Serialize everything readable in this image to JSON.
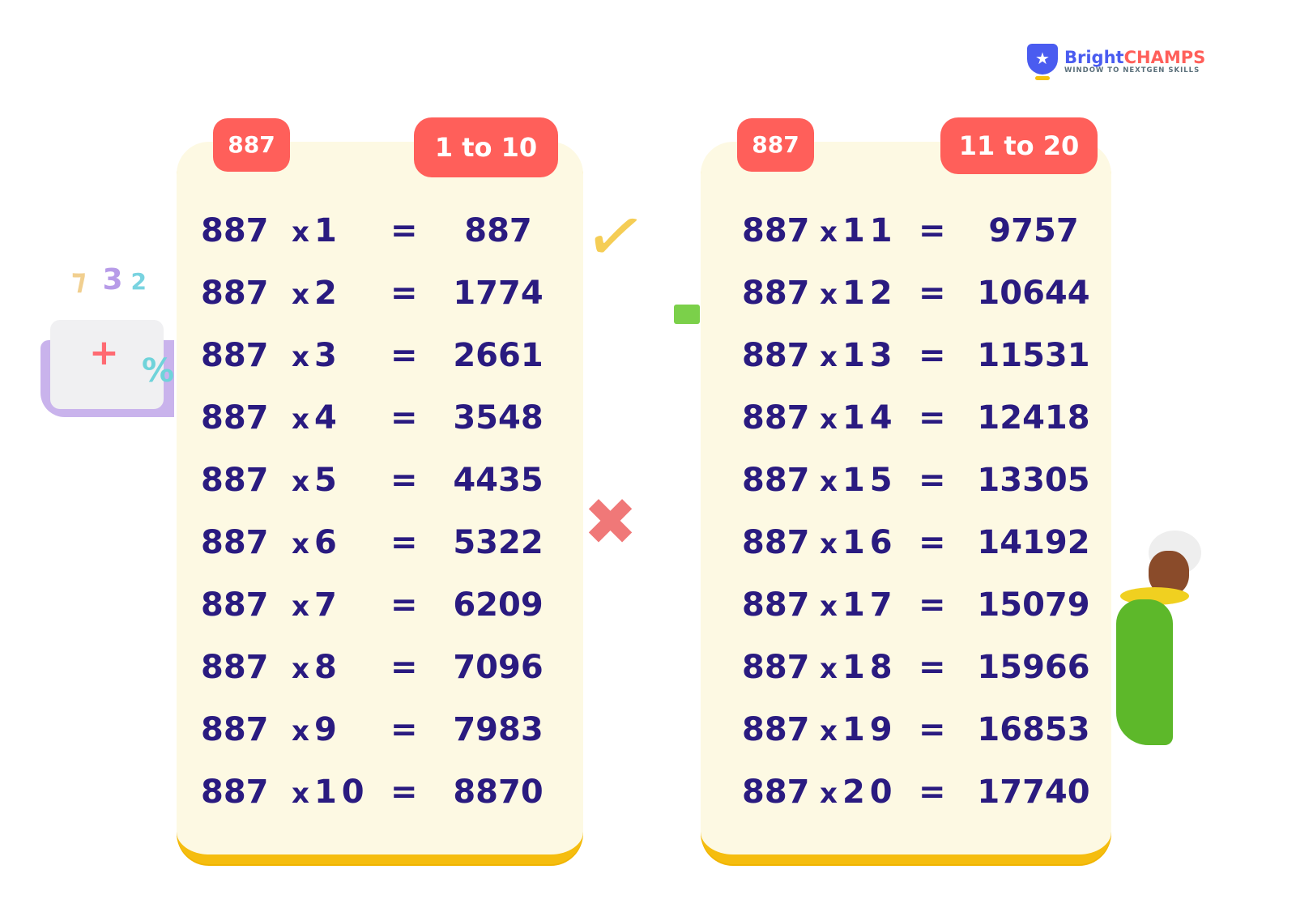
{
  "logo": {
    "brand_part1": "Bright",
    "brand_part2": "CHAMPS",
    "tagline": "WINDOW TO NEXTGEN SKILLS"
  },
  "colors": {
    "card": "#fdf9e3",
    "badge": "#ff5f5a",
    "text": "#2a1b80",
    "accent": "#f5bd0f"
  },
  "tables": [
    {
      "badge": "887",
      "range": "1 to 10",
      "equals": "=",
      "times": "x",
      "rows": [
        {
          "a": "887",
          "b": "1",
          "result": "887"
        },
        {
          "a": "887",
          "b": "2",
          "result": "1774"
        },
        {
          "a": "887",
          "b": "3",
          "result": "2661"
        },
        {
          "a": "887",
          "b": "4",
          "result": "3548"
        },
        {
          "a": "887",
          "b": "5",
          "result": "4435"
        },
        {
          "a": "887",
          "b": "6",
          "result": "5322"
        },
        {
          "a": "887",
          "b": "7",
          "result": "6209"
        },
        {
          "a": "887",
          "b": "8",
          "result": "7096"
        },
        {
          "a": "887",
          "b": "9",
          "result": "7983"
        },
        {
          "a": "887",
          "b": "10",
          "result": "8870"
        }
      ]
    },
    {
      "badge": "887",
      "range": "11 to 20",
      "equals": "=",
      "times": "x",
      "rows": [
        {
          "a": "887",
          "b": "11",
          "result": "9757"
        },
        {
          "a": "887",
          "b": "12",
          "result": "10644"
        },
        {
          "a": "887",
          "b": "13",
          "result": "11531"
        },
        {
          "a": "887",
          "b": "14",
          "result": "12418"
        },
        {
          "a": "887",
          "b": "15",
          "result": "13305"
        },
        {
          "a": "887",
          "b": "16",
          "result": "14192"
        },
        {
          "a": "887",
          "b": "17",
          "result": "15079"
        },
        {
          "a": "887",
          "b": "18",
          "result": "15966"
        },
        {
          "a": "887",
          "b": "19",
          "result": "16853"
        },
        {
          "a": "887",
          "b": "20",
          "result": "17740"
        }
      ]
    }
  ]
}
